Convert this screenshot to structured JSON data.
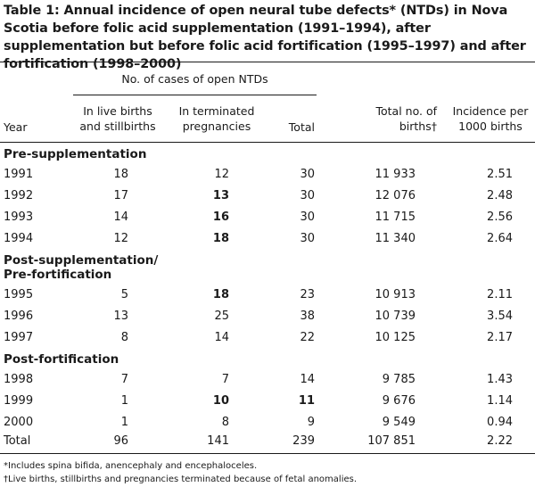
{
  "title": "Table 1: Annual incidence of open neural tube defects* (NTDs) in Nova Scotia before folic acid supplementation (1991–1994), after supplementation but before folic acid fortification (1995–1997) and after fortification (1998–2000)",
  "header": {
    "group_label": "No. of cases of open NTDs",
    "col_year": "Year",
    "col_live": "In live births and stillbirths",
    "col_terminated": "In terminated pregnancies",
    "col_total": "Total",
    "col_births": "Total no. of births†",
    "col_incidence": "Incidence per 1000 births"
  },
  "sections": [
    {
      "label": "Pre-supplementation",
      "rows": [
        {
          "year": "1991",
          "live": "18",
          "terminated": "12",
          "total": "30",
          "births": "11 933",
          "incidence": "2.51"
        },
        {
          "year": "1992",
          "live": "17",
          "terminated": "13",
          "total": "30",
          "births": "12 076",
          "incidence": "2.48"
        },
        {
          "year": "1993",
          "live": "14",
          "terminated": "16",
          "total": "30",
          "births": "11 715",
          "incidence": "2.56"
        },
        {
          "year": "1994",
          "live": "12",
          "terminated": "18",
          "total": "30",
          "births": "11 340",
          "incidence": "2.64"
        }
      ]
    },
    {
      "label_line1": "Post-supplementation/",
      "label_line2": "Pre-fortification",
      "rows": [
        {
          "year": "1995",
          "live": "5",
          "terminated": "18",
          "total": "23",
          "births": "10 913",
          "incidence": "2.11"
        },
        {
          "year": "1996",
          "live": "13",
          "terminated": "25",
          "total": "38",
          "births": "10 739",
          "incidence": "3.54"
        },
        {
          "year": "1997",
          "live": "8",
          "terminated": "14",
          "total": "22",
          "births": "10 125",
          "incidence": "2.17"
        }
      ]
    },
    {
      "label": "Post-fortification",
      "rows": [
        {
          "year": "1998",
          "live": "7",
          "terminated": "7",
          "total": "14",
          "births": "9 785",
          "incidence": "1.43"
        },
        {
          "year": "1999",
          "live": "1",
          "terminated": "10",
          "total": "11",
          "births": "9 676",
          "incidence": "1.14"
        },
        {
          "year": "2000",
          "live": "1",
          "terminated": "8",
          "total": "9",
          "births": "9 549",
          "incidence": "0.94"
        }
      ]
    }
  ],
  "totals": {
    "year": "Total",
    "live": "96",
    "terminated": "141",
    "total": "239",
    "births": "107 851",
    "incidence": "2.22"
  },
  "footnotes": [
    "*Includes spina bifida, anencephaly and encephaloceles.",
    "†Live births, stillbirths and pregnancies terminated because of fetal anomalies."
  ]
}
